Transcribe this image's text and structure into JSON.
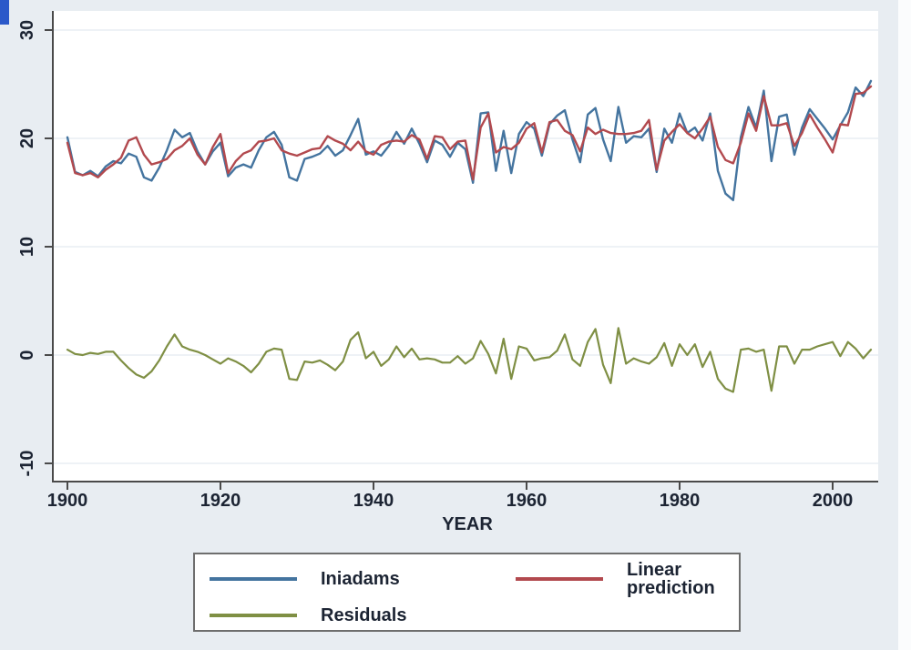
{
  "figure": {
    "corner_mark_color": "#2b59c9",
    "margin_background": "#e8edf2",
    "plot_background": "#ffffff",
    "gridline_color": "#eef2f6",
    "axis_color": "#4a4a4a",
    "text_color": "#1c2433",
    "legend_border_color": "#6e6e6e"
  },
  "chart_data": {
    "type": "line",
    "title": "",
    "xlabel": "YEAR",
    "ylabel": "",
    "grid": "horizontal",
    "legend_position": "bottom",
    "xticks": [
      1900,
      1920,
      1940,
      1960,
      1980,
      2000
    ],
    "yticks": [
      -10,
      0,
      10,
      20,
      30
    ],
    "xlim": [
      1900,
      2005
    ],
    "ylim": [
      -10,
      30
    ],
    "x": [
      1900,
      1901,
      1902,
      1903,
      1904,
      1905,
      1906,
      1907,
      1908,
      1909,
      1910,
      1911,
      1912,
      1913,
      1914,
      1915,
      1916,
      1917,
      1918,
      1919,
      1920,
      1921,
      1922,
      1923,
      1924,
      1925,
      1926,
      1927,
      1928,
      1929,
      1930,
      1931,
      1932,
      1933,
      1934,
      1935,
      1936,
      1937,
      1938,
      1939,
      1940,
      1941,
      1942,
      1943,
      1944,
      1945,
      1946,
      1947,
      1948,
      1949,
      1950,
      1951,
      1952,
      1953,
      1954,
      1955,
      1956,
      1957,
      1958,
      1959,
      1960,
      1961,
      1962,
      1963,
      1964,
      1965,
      1966,
      1967,
      1968,
      1969,
      1970,
      1971,
      1972,
      1973,
      1974,
      1975,
      1976,
      1977,
      1978,
      1979,
      1980,
      1981,
      1982,
      1983,
      1984,
      1985,
      1986,
      1987,
      1988,
      1989,
      1990,
      1991,
      1992,
      1993,
      1994,
      1995,
      1996,
      1997,
      1998,
      1999,
      2000,
      2001,
      2002,
      2003,
      2004,
      2005
    ],
    "series": [
      {
        "name": "Iniadams",
        "color": "#44749f",
        "line_width": 2.4,
        "values": [
          20.1,
          16.9,
          16.6,
          17.0,
          16.5,
          17.4,
          17.9,
          17.7,
          18.6,
          18.3,
          16.4,
          16.1,
          17.3,
          18.9,
          20.8,
          20.1,
          20.5,
          18.8,
          17.6,
          18.8,
          19.6,
          16.5,
          17.3,
          17.6,
          17.3,
          18.9,
          20.1,
          20.6,
          19.4,
          16.4,
          16.1,
          18.1,
          18.3,
          18.6,
          19.3,
          18.4,
          18.9,
          20.3,
          21.8,
          18.5,
          18.8,
          18.4,
          19.3,
          20.6,
          19.5,
          20.9,
          19.5,
          17.8,
          19.8,
          19.4,
          18.3,
          19.6,
          19.0,
          15.9,
          22.3,
          22.4,
          17.0,
          20.7,
          16.8,
          20.4,
          21.5,
          20.9,
          18.4,
          21.3,
          22.1,
          22.6,
          19.9,
          17.8,
          22.2,
          22.8,
          19.9,
          17.9,
          22.9,
          19.6,
          20.2,
          20.1,
          20.9,
          16.9,
          20.9,
          19.6,
          22.3,
          20.5,
          21.0,
          19.8,
          22.3,
          17.0,
          14.9,
          14.3,
          20.1,
          22.9,
          21.0,
          24.4,
          17.9,
          22.0,
          22.2,
          18.5,
          21.0,
          22.7,
          21.8,
          20.9,
          19.9,
          21.2,
          22.4,
          24.7,
          23.9,
          25.3
        ]
      },
      {
        "name": "Linear prediction",
        "color": "#b2494e",
        "line_width": 2.4,
        "values": [
          19.6,
          16.8,
          16.6,
          16.8,
          16.4,
          17.1,
          17.6,
          18.2,
          19.8,
          20.1,
          18.5,
          17.6,
          17.8,
          18.1,
          18.9,
          19.3,
          20.0,
          18.5,
          17.6,
          19.2,
          20.4,
          16.8,
          17.9,
          18.6,
          18.9,
          19.7,
          19.8,
          20.0,
          18.9,
          18.6,
          18.4,
          18.7,
          19.0,
          19.1,
          20.2,
          19.8,
          19.5,
          18.9,
          19.7,
          18.8,
          18.5,
          19.4,
          19.7,
          19.8,
          19.7,
          20.3,
          19.9,
          18.1,
          20.2,
          20.1,
          19.0,
          19.7,
          19.8,
          16.2,
          21.0,
          22.3,
          18.7,
          19.2,
          19.0,
          19.6,
          20.9,
          21.4,
          18.7,
          21.5,
          21.7,
          20.7,
          20.3,
          18.8,
          21.0,
          20.4,
          20.8,
          20.5,
          20.4,
          20.4,
          20.5,
          20.7,
          21.7,
          17.1,
          19.8,
          20.6,
          21.3,
          20.5,
          20.0,
          20.9,
          22.0,
          19.2,
          18.0,
          17.7,
          19.6,
          22.3,
          20.7,
          23.9,
          21.2,
          21.2,
          21.4,
          19.3,
          20.5,
          22.2,
          21.0,
          19.9,
          18.7,
          21.3,
          21.2,
          24.1,
          24.2,
          24.8
        ]
      },
      {
        "name": "Residuals",
        "color": "#7f8f44",
        "line_width": 2.2,
        "values": [
          0.5,
          0.1,
          0.0,
          0.2,
          0.1,
          0.3,
          0.3,
          -0.5,
          -1.2,
          -1.8,
          -2.1,
          -1.5,
          -0.5,
          0.8,
          1.9,
          0.8,
          0.5,
          0.3,
          0.0,
          -0.4,
          -0.8,
          -0.3,
          -0.6,
          -1.0,
          -1.6,
          -0.8,
          0.3,
          0.6,
          0.5,
          -2.2,
          -2.3,
          -0.6,
          -0.7,
          -0.5,
          -0.9,
          -1.4,
          -0.6,
          1.4,
          2.1,
          -0.3,
          0.3,
          -1.0,
          -0.4,
          0.8,
          -0.2,
          0.6,
          -0.4,
          -0.3,
          -0.4,
          -0.7,
          -0.7,
          -0.1,
          -0.8,
          -0.3,
          1.3,
          0.1,
          -1.7,
          1.5,
          -2.2,
          0.8,
          0.6,
          -0.5,
          -0.3,
          -0.2,
          0.4,
          1.9,
          -0.4,
          -1.0,
          1.2,
          2.4,
          -0.9,
          -2.6,
          2.5,
          -0.8,
          -0.3,
          -0.6,
          -0.8,
          -0.2,
          1.1,
          -1.0,
          1.0,
          0.0,
          1.0,
          -1.1,
          0.3,
          -2.2,
          -3.1,
          -3.4,
          0.5,
          0.6,
          0.3,
          0.5,
          -3.3,
          0.8,
          0.8,
          -0.8,
          0.5,
          0.5,
          0.8,
          1.0,
          1.2,
          -0.1,
          1.2,
          0.6,
          -0.3,
          0.5
        ]
      }
    ]
  }
}
